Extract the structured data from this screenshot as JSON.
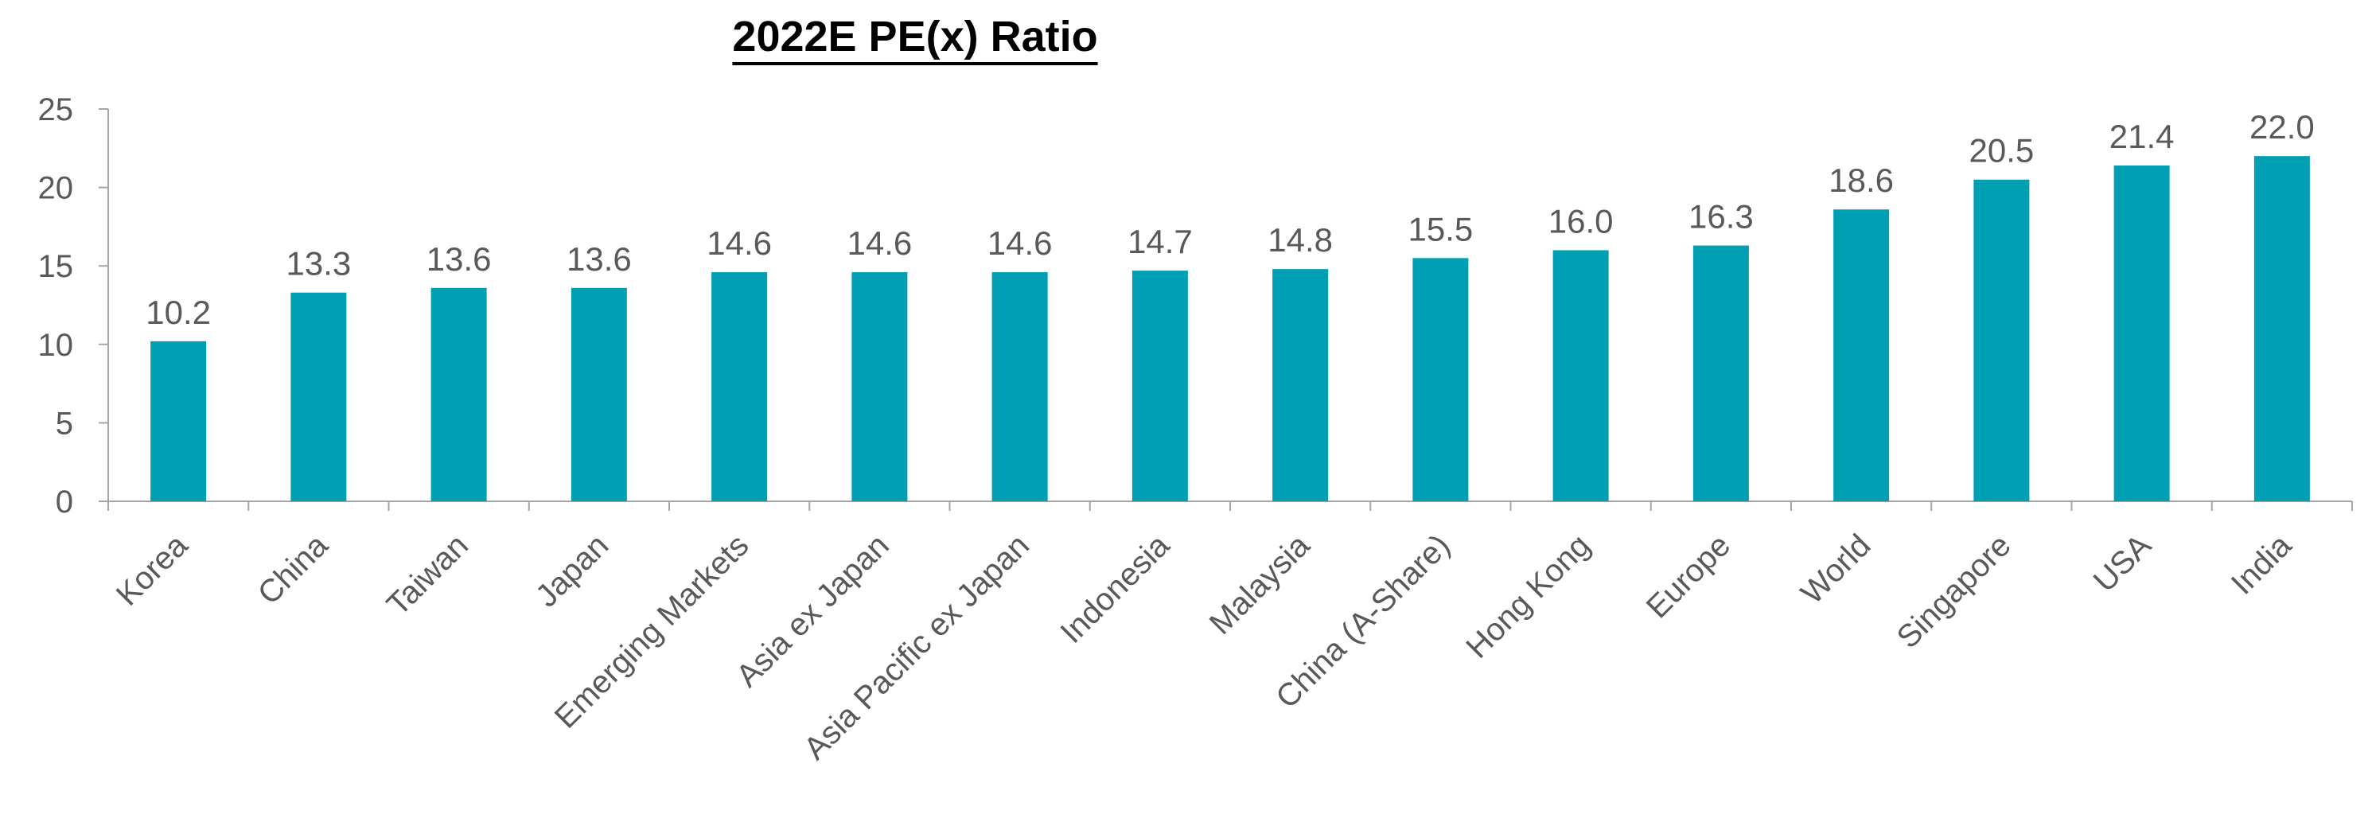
{
  "chart_data": {
    "type": "bar",
    "title": "2022E PE(x) Ratio",
    "xlabel": "",
    "ylabel": "",
    "categories": [
      "Korea",
      "China",
      "Taiwan",
      "Japan",
      "Emerging Markets",
      "Asia ex Japan",
      "Asia Pacific ex Japan",
      "Indonesia",
      "Malaysia",
      "China (A-Share)",
      "Hong Kong",
      "Europe",
      "World",
      "Singapore",
      "USA",
      "India"
    ],
    "values": [
      10.2,
      13.3,
      13.6,
      13.6,
      14.6,
      14.6,
      14.6,
      14.7,
      14.8,
      15.5,
      16.0,
      16.3,
      18.6,
      20.5,
      21.4,
      22.0
    ],
    "value_labels": [
      "10.2",
      "13.3",
      "13.6",
      "13.6",
      "14.6",
      "14.6",
      "14.6",
      "14.7",
      "14.8",
      "15.5",
      "16.0",
      "16.3",
      "18.6",
      "20.5",
      "21.4",
      "22.0"
    ],
    "ylim": [
      0,
      25
    ],
    "yticks": [
      "0",
      "5",
      "10",
      "15",
      "20",
      "25"
    ],
    "grid": false,
    "legend": "none",
    "colors": {
      "bar": "#00A0B4"
    }
  }
}
